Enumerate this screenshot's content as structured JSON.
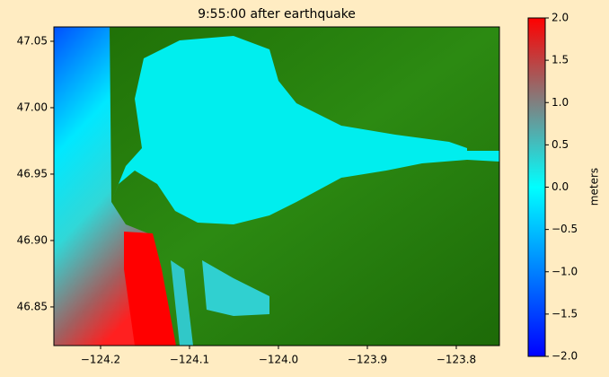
{
  "chart_data": {
    "type": "heatmap",
    "title": "9:55:00 after earthquake",
    "xlim": [
      -124.2525,
      -123.7515
    ],
    "ylim": [
      46.8209,
      47.0608
    ],
    "xticks": [
      {
        "value": -124.2,
        "label": "−124.2"
      },
      {
        "value": -124.1,
        "label": "−124.1"
      },
      {
        "value": -124.0,
        "label": "−124.0"
      },
      {
        "value": -123.9,
        "label": "−123.9"
      },
      {
        "value": -123.8,
        "label": "−123.8"
      }
    ],
    "yticks": [
      {
        "value": 46.85,
        "label": "46.85"
      },
      {
        "value": 46.9,
        "label": "46.90"
      },
      {
        "value": 46.95,
        "label": "46.95"
      },
      {
        "value": 47.0,
        "label": "47.00"
      },
      {
        "value": 47.05,
        "label": "47.05"
      }
    ],
    "colorbar": {
      "label": "meters",
      "lim": [
        -2,
        2
      ],
      "ticks": [
        {
          "value": 2,
          "label": "2.0"
        },
        {
          "value": 1.5,
          "label": "1.5"
        },
        {
          "value": 1,
          "label": "1.0"
        },
        {
          "value": 0.5,
          "label": "0.5"
        },
        {
          "value": 0,
          "label": "0.0"
        },
        {
          "value": -0.5,
          "label": "−0.5"
        },
        {
          "value": -1,
          "label": "−1.0"
        },
        {
          "value": -1.5,
          "label": "−1.5"
        },
        {
          "value": -2,
          "label": "−2.0"
        }
      ],
      "colormap": [
        {
          "value": -2,
          "color": "#0000ff"
        },
        {
          "value": -1,
          "color": "#0080ff"
        },
        {
          "value": 0,
          "color": "#00ffff"
        },
        {
          "value": 1,
          "color": "#808080"
        },
        {
          "value": 2,
          "color": "#ff0000"
        }
      ]
    }
  }
}
